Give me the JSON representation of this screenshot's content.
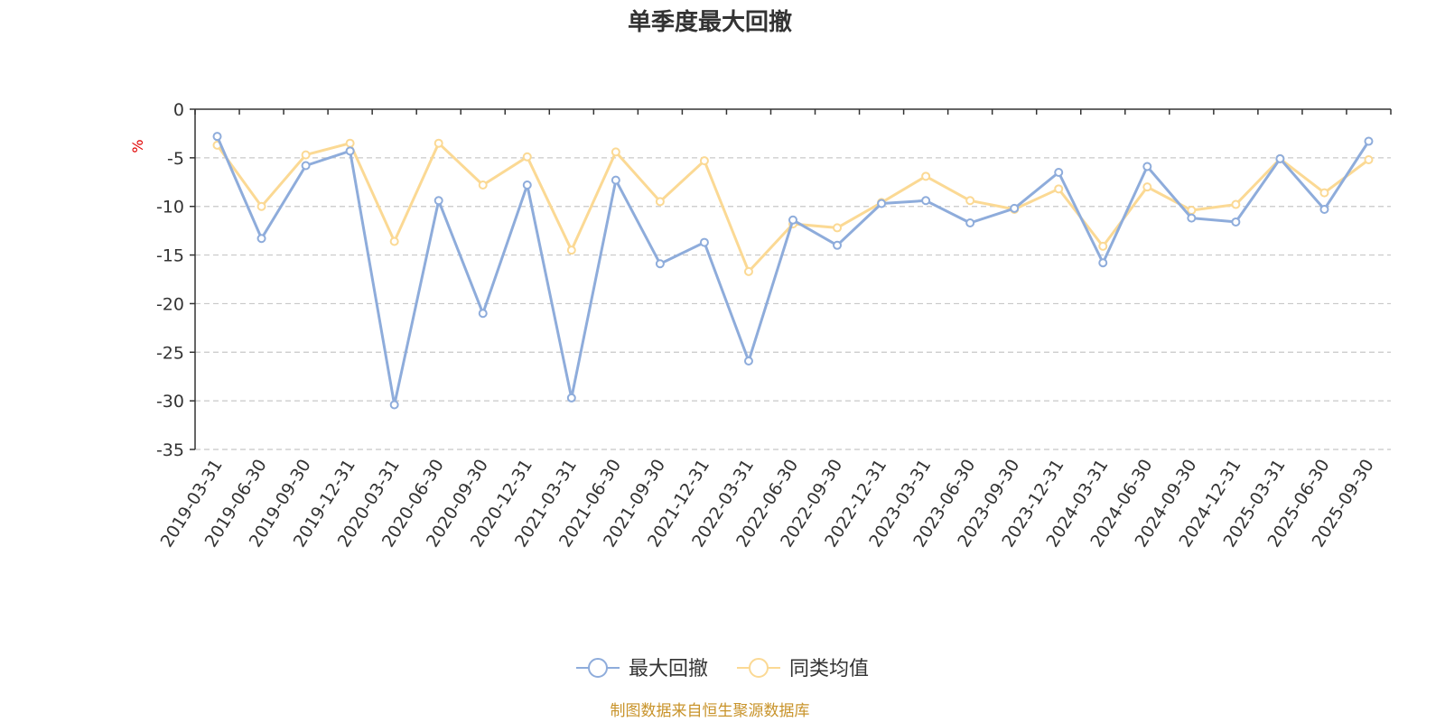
{
  "chart_data": {
    "type": "line",
    "title": "单季度最大回撤",
    "ylabel": "%",
    "xlabel": "",
    "ylim": [
      -35,
      0
    ],
    "yticks": [
      0,
      -5,
      -10,
      -15,
      -20,
      -25,
      -30,
      -35
    ],
    "ytick_labels": [
      "0",
      "-5",
      "-10",
      "-15",
      "-20",
      "-25",
      "-30",
      "-35"
    ],
    "grid": true,
    "legend_position": "bottom-center",
    "categories": [
      "2019-03-31",
      "2019-06-30",
      "2019-09-30",
      "2019-12-31",
      "2020-03-31",
      "2020-06-30",
      "2020-09-30",
      "2020-12-31",
      "2021-03-31",
      "2021-06-30",
      "2021-09-30",
      "2021-12-31",
      "2022-03-31",
      "2022-06-30",
      "2022-09-30",
      "2022-12-31",
      "2023-03-31",
      "2023-06-30",
      "2023-09-30",
      "2023-12-31",
      "2024-03-31",
      "2024-06-30",
      "2024-09-30",
      "2024-12-31",
      "2025-03-31",
      "2025-06-30",
      "2025-09-30"
    ],
    "series": [
      {
        "name": "最大回撤",
        "color": "#8eacdb",
        "values": [
          -2.8,
          -13.3,
          -5.8,
          -4.3,
          -30.4,
          -9.4,
          -21.0,
          -7.8,
          -29.7,
          -7.3,
          -15.9,
          -13.7,
          -25.9,
          -11.4,
          -14.0,
          -9.7,
          -9.4,
          -11.7,
          -10.2,
          -6.5,
          -15.8,
          -5.9,
          -11.2,
          -11.6,
          -5.1,
          -10.3,
          -3.3
        ]
      },
      {
        "name": "同类均值",
        "color": "#fbd994",
        "values": [
          -3.7,
          -10.0,
          -4.7,
          -3.5,
          -13.6,
          -3.5,
          -7.8,
          -4.9,
          -14.5,
          -4.4,
          -9.5,
          -5.3,
          -16.7,
          -11.8,
          -12.2,
          -9.6,
          -6.9,
          -9.4,
          -10.3,
          -8.2,
          -14.1,
          -8.0,
          -10.4,
          -9.8,
          -5.1,
          -8.6,
          -5.2
        ]
      }
    ]
  },
  "footer": {
    "source_text": "制图数据来自恒生聚源数据库",
    "source_color": "#c8932a"
  }
}
